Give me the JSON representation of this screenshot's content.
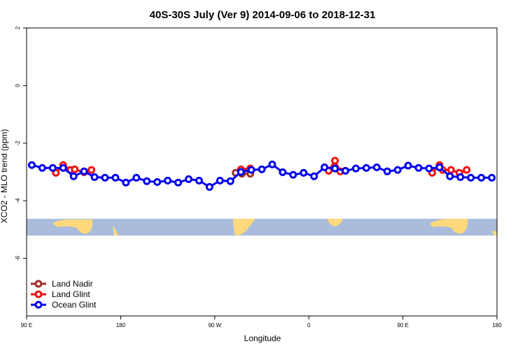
{
  "chart_data": {
    "type": "line",
    "title": "40S-30S July (Ver 9)   2014-09-06 to 2018-12-31",
    "x_label": "Longitude",
    "y_label": "XCO2 - MLO trend (ppm)",
    "xlim": [
      90,
      540
    ],
    "ylim": [
      -8,
      2
    ],
    "xticks": [
      {
        "value": 90,
        "label": "90 E"
      },
      {
        "value": 180,
        "label": "180"
      },
      {
        "value": 270,
        "label": "90 W"
      },
      {
        "value": 360,
        "label": "0"
      },
      {
        "value": 450,
        "label": "90 E"
      },
      {
        "value": 540,
        "label": "180"
      }
    ],
    "yticks": [
      2,
      0,
      -2,
      -4,
      -6
    ],
    "legend": "bottom-left",
    "series": [
      {
        "name": "Land Nadir",
        "color": "#9b2d2d",
        "x": [
          290,
          296,
          304
        ],
        "values": [
          -3.03,
          -3.06,
          -3.06
        ]
      },
      {
        "name": "Land Glint",
        "color": "#ee1111",
        "x": [
          118,
          125,
          132,
          136,
          145,
          152,
          null,
          295,
          304,
          null,
          379,
          385,
          390,
          null,
          478,
          485,
          488,
          496,
          504,
          511
        ],
        "values": [
          -3.03,
          -2.76,
          -2.93,
          -2.91,
          -3.01,
          -2.93,
          null,
          -2.91,
          -2.88,
          null,
          -2.96,
          -2.61,
          -2.98,
          null,
          -3.03,
          -2.76,
          -2.93,
          -2.93,
          -3.03,
          -2.93
        ]
      },
      {
        "name": "Ocean Glint",
        "color": "#0000ee",
        "x": [
          95,
          105,
          115,
          125,
          135,
          145,
          155,
          165,
          175,
          185,
          195,
          205,
          215,
          225,
          235,
          245,
          255,
          265,
          275,
          285,
          295,
          305,
          315,
          325,
          335,
          345,
          355,
          365,
          375,
          385,
          395,
          405,
          415,
          425,
          435,
          445,
          455,
          465,
          475,
          485,
          495,
          505,
          515,
          525,
          535
        ],
        "values": [
          -2.76,
          -2.86,
          -2.86,
          -2.86,
          -3.15,
          -2.98,
          -3.18,
          -3.2,
          -3.2,
          -3.37,
          -3.2,
          -3.32,
          -3.35,
          -3.3,
          -3.37,
          -3.25,
          -3.3,
          -3.52,
          -3.3,
          -3.32,
          -3.0,
          -2.93,
          -2.91,
          -2.74,
          -3.01,
          -3.1,
          -3.03,
          -3.15,
          -2.84,
          -2.88,
          -2.96,
          -2.88,
          -2.86,
          -2.84,
          -2.98,
          -2.93,
          -2.78,
          -2.86,
          -2.88,
          -2.84,
          -3.15,
          -3.18,
          -3.2,
          -3.2,
          -3.2
        ]
      }
    ]
  }
}
